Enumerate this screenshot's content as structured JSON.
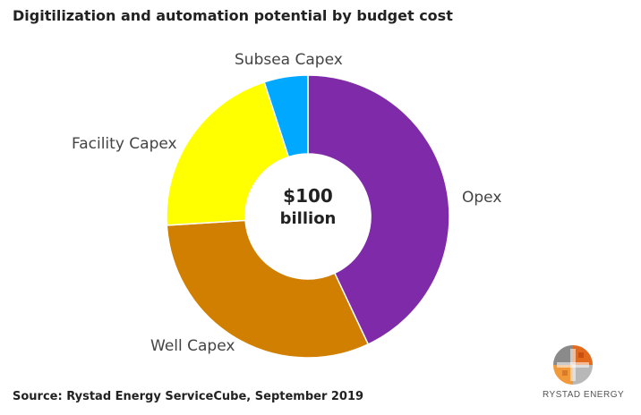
{
  "chart_data": {
    "type": "pie",
    "title": "Digitilization and automation potential by budget cost",
    "center_label": [
      "$100",
      "billion"
    ],
    "slices": [
      {
        "label": "Opex",
        "value": 43,
        "color": "#7f2aa8"
      },
      {
        "label": "Well Capex",
        "value": 31,
        "color": "#d17f00"
      },
      {
        "label": "Facility Capex",
        "value": 21,
        "color": "#ffff00"
      },
      {
        "label": "Subsea Capex",
        "value": 5,
        "color": "#00a8ff"
      }
    ]
  },
  "source": "Source: Rystad Energy ServiceCube, September 2019",
  "logo": {
    "text": "RYSTAD ENERGY",
    "icon": "rystad-globe-logo-icon"
  }
}
